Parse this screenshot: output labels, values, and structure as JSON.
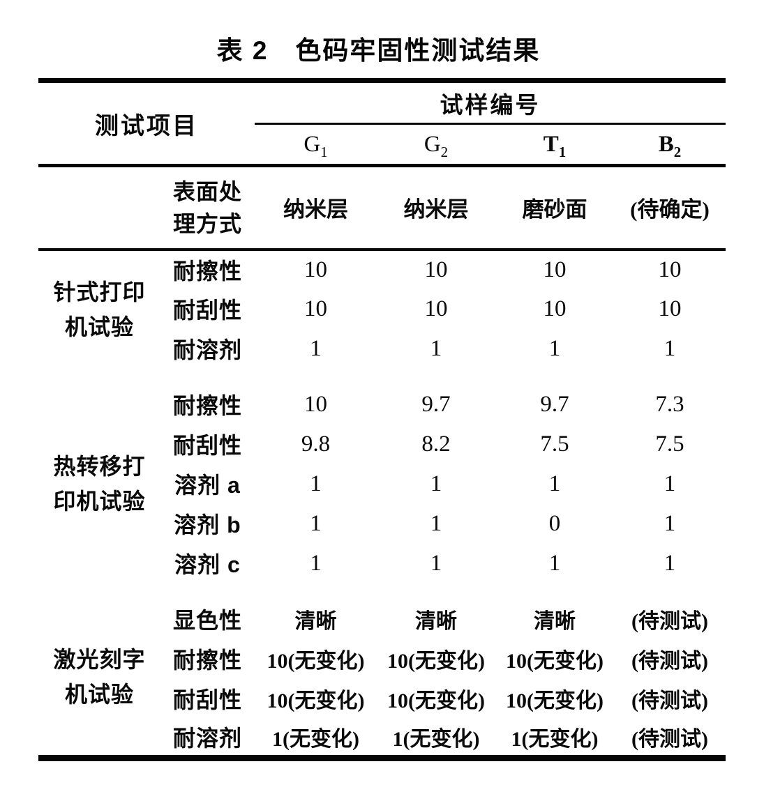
{
  "title": "表 2　色码牢固性测试结果",
  "colors": {
    "background": "#ffffff",
    "text": "#0a0a0a",
    "rule": "#050505"
  },
  "table": {
    "header": {
      "test_item_label": "测试项目",
      "sample_group_label": "试样编号",
      "columns": [
        {
          "base": "G",
          "sub": "1"
        },
        {
          "base": "G",
          "sub": "2"
        },
        {
          "base": "T",
          "sub": "1"
        },
        {
          "base": "B",
          "sub": "2"
        }
      ]
    },
    "surface_row": {
      "label_line1": "表面处",
      "label_line2": "理方式",
      "values": [
        "纳米层",
        "纳米层",
        "磨砂面",
        "(待确定)"
      ]
    },
    "sections": [
      {
        "name_line1": "针式打印",
        "name_line2": "机试验",
        "rows": [
          {
            "label": "耐擦性",
            "values": [
              "10",
              "10",
              "10",
              "10"
            ]
          },
          {
            "label": "耐刮性",
            "values": [
              "10",
              "10",
              "10",
              "10"
            ]
          },
          {
            "label": "耐溶剂",
            "values": [
              "1",
              "1",
              "1",
              "1"
            ]
          }
        ]
      },
      {
        "name_line1": "热转移打",
        "name_line2": "印机试验",
        "rows": [
          {
            "label": "耐擦性",
            "values": [
              "10",
              "9.7",
              "9.7",
              "7.3"
            ]
          },
          {
            "label": "耐刮性",
            "values": [
              "9.8",
              "8.2",
              "7.5",
              "7.5"
            ]
          },
          {
            "label": "溶剂 a",
            "values": [
              "1",
              "1",
              "1",
              "1"
            ]
          },
          {
            "label": "溶剂 b",
            "values": [
              "1",
              "1",
              "0",
              "1"
            ]
          },
          {
            "label": "溶剂 c",
            "values": [
              "1",
              "1",
              "1",
              "1"
            ]
          }
        ]
      },
      {
        "name_line1": "激光刻字",
        "name_line2": "机试验",
        "rows": [
          {
            "label": "显色性",
            "values": [
              "清晰",
              "清晰",
              "清晰",
              "(待测试)"
            ]
          },
          {
            "label": "耐擦性",
            "values": [
              "10(无变化)",
              "10(无变化)",
              "10(无变化)",
              "(待测试)"
            ]
          },
          {
            "label": "耐刮性",
            "values": [
              "10(无变化)",
              "10(无变化)",
              "10(无变化)",
              "(待测试)"
            ]
          },
          {
            "label": "耐溶剂",
            "values": [
              "1(无变化)",
              "1(无变化)",
              "1(无变化)",
              "(待测试)"
            ]
          }
        ]
      }
    ]
  }
}
